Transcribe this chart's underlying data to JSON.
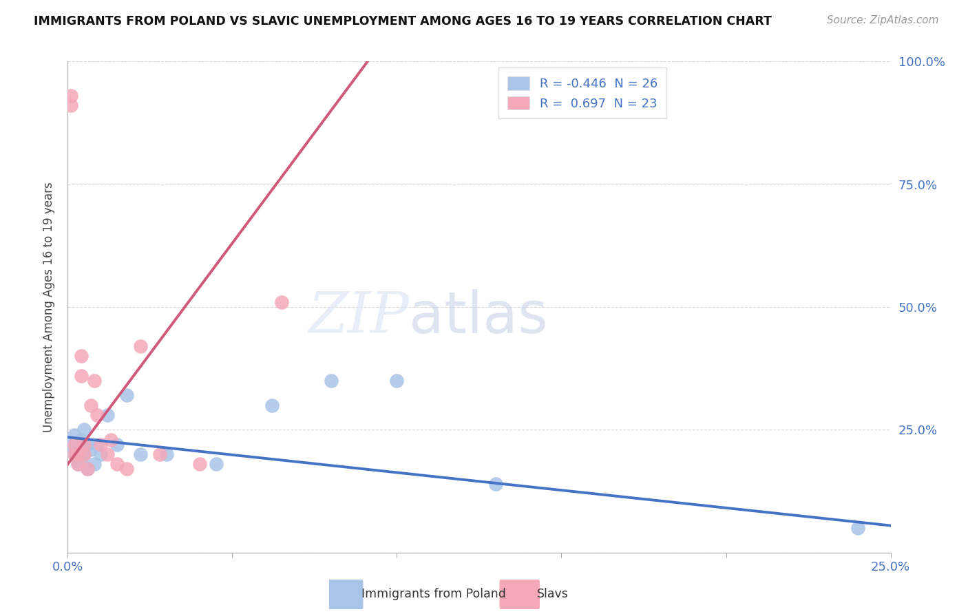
{
  "title": "IMMIGRANTS FROM POLAND VS SLAVIC UNEMPLOYMENT AMONG AGES 16 TO 19 YEARS CORRELATION CHART",
  "source": "Source: ZipAtlas.com",
  "ylabel": "Unemployment Among Ages 16 to 19 years",
  "xlim": [
    0.0,
    0.25
  ],
  "ylim": [
    0.0,
    1.0
  ],
  "poland_R": -0.446,
  "poland_N": 26,
  "slavs_R": 0.697,
  "slavs_N": 23,
  "poland_color": "#a8c4e8",
  "slavs_color": "#f4a8b8",
  "poland_line_color": "#4472c4",
  "slavs_line_color": "#d05878",
  "poland_x": [
    0.001,
    0.002,
    0.002,
    0.003,
    0.003,
    0.004,
    0.004,
    0.005,
    0.005,
    0.006,
    0.006,
    0.007,
    0.008,
    0.009,
    0.01,
    0.012,
    0.015,
    0.018,
    0.022,
    0.03,
    0.045,
    0.062,
    0.08,
    0.1,
    0.13,
    0.24
  ],
  "poland_y": [
    0.22,
    0.24,
    0.2,
    0.21,
    0.18,
    0.23,
    0.19,
    0.25,
    0.2,
    0.22,
    0.17,
    0.21,
    0.18,
    0.22,
    0.2,
    0.28,
    0.22,
    0.32,
    0.2,
    0.2,
    0.18,
    0.3,
    0.35,
    0.35,
    0.14,
    0.05
  ],
  "slavs_x": [
    0.001,
    0.001,
    0.002,
    0.002,
    0.003,
    0.003,
    0.004,
    0.004,
    0.005,
    0.005,
    0.006,
    0.007,
    0.008,
    0.009,
    0.01,
    0.012,
    0.013,
    0.015,
    0.018,
    0.022,
    0.028,
    0.04,
    0.065
  ],
  "slavs_y": [
    0.93,
    0.91,
    0.2,
    0.22,
    0.18,
    0.2,
    0.36,
    0.4,
    0.2,
    0.22,
    0.17,
    0.3,
    0.35,
    0.28,
    0.22,
    0.2,
    0.23,
    0.18,
    0.17,
    0.42,
    0.2,
    0.18,
    0.51
  ]
}
